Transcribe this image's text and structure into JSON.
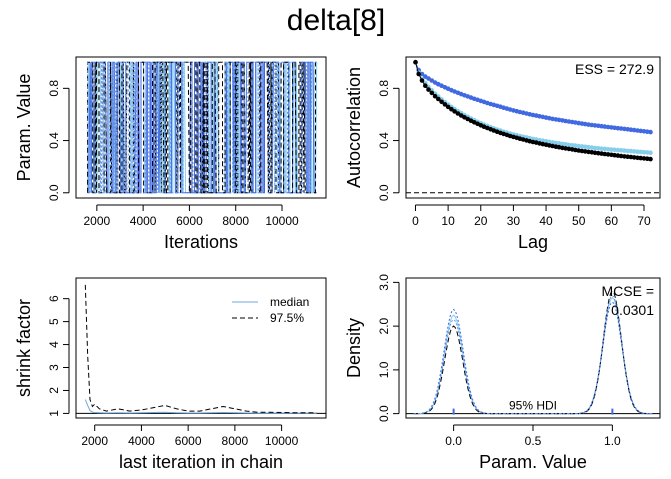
{
  "figure": {
    "title": "delta[8]"
  },
  "colors": {
    "chain_light": "#87CEEB",
    "chain_blue": "#4169E1",
    "chain_dark": "#000000",
    "chain_mid": "#6495ED",
    "median": "#6FA8DC",
    "axis": "#000000"
  },
  "chart_data": [
    {
      "id": "trace",
      "type": "line",
      "title": "",
      "xlabel": "Iterations",
      "ylabel": "Param. Value",
      "xlim": [
        1100,
        11900
      ],
      "ylim": [
        -0.04,
        1.04
      ],
      "x_ticks": [
        "2000",
        "4000",
        "6000",
        "8000",
        "10000"
      ],
      "y_ticks": [
        "0.0",
        "0.4",
        "0.8"
      ],
      "x_range": [
        1600,
        11500
      ],
      "value_levels": [
        0,
        1
      ],
      "series": [
        {
          "style": "solid",
          "color": "#87CEEB"
        },
        {
          "style": "solid",
          "color": "#4169E1"
        },
        {
          "style": "dashed",
          "color": "#000000"
        },
        {
          "style": "dotted",
          "color": "#6495ED"
        }
      ],
      "grid": false
    },
    {
      "id": "autocorrelation",
      "type": "scatter",
      "title": "",
      "xlabel": "Lag",
      "ylabel": "Autocorrelation",
      "xlim": [
        -2.9,
        74.9
      ],
      "ylim": [
        -0.04,
        1.04
      ],
      "x_ticks": [
        "0",
        "10",
        "20",
        "30",
        "40",
        "50",
        "60",
        "70"
      ],
      "y_ticks": [
        "0.0",
        "0.4",
        "0.8"
      ],
      "annotation": "ESS = 272.9",
      "reference_line": 0,
      "series": [
        {
          "color": "#4169E1",
          "values": [
            1.0,
            0.94,
            0.91,
            0.89,
            0.875,
            0.86,
            0.845,
            0.832,
            0.82,
            0.808,
            0.797,
            0.786,
            0.776,
            0.766,
            0.756,
            0.747,
            0.738,
            0.729,
            0.72,
            0.712,
            0.704,
            0.696,
            0.688,
            0.68,
            0.673,
            0.666,
            0.659,
            0.652,
            0.645,
            0.638,
            0.631,
            0.625,
            0.619,
            0.613,
            0.607,
            0.601,
            0.596,
            0.591,
            0.586,
            0.581,
            0.576,
            0.571,
            0.566,
            0.562,
            0.558,
            0.554,
            0.55,
            0.546,
            0.542,
            0.538,
            0.534,
            0.53,
            0.526,
            0.522,
            0.519,
            0.516,
            0.513,
            0.51,
            0.507,
            0.504,
            0.501,
            0.498,
            0.495,
            0.492,
            0.489,
            0.486,
            0.483,
            0.48,
            0.477,
            0.474,
            0.471,
            0.468,
            0.465
          ]
        },
        {
          "color": "#87CEEB",
          "values": [
            1.0,
            0.92,
            0.87,
            0.84,
            0.81,
            0.785,
            0.76,
            0.737,
            0.715,
            0.695,
            0.676,
            0.658,
            0.641,
            0.625,
            0.61,
            0.596,
            0.582,
            0.569,
            0.556,
            0.544,
            0.533,
            0.522,
            0.512,
            0.502,
            0.493,
            0.484,
            0.476,
            0.468,
            0.461,
            0.454,
            0.447,
            0.441,
            0.435,
            0.429,
            0.424,
            0.418,
            0.413,
            0.408,
            0.403,
            0.399,
            0.394,
            0.39,
            0.386,
            0.382,
            0.378,
            0.374,
            0.371,
            0.367,
            0.364,
            0.361,
            0.358,
            0.355,
            0.352,
            0.349,
            0.346,
            0.343,
            0.341,
            0.338,
            0.336,
            0.333,
            0.331,
            0.329,
            0.327,
            0.325,
            0.323,
            0.321,
            0.319,
            0.317,
            0.315,
            0.313,
            0.311,
            0.309,
            0.307
          ]
        },
        {
          "color": "#000000",
          "values": [
            1.0,
            0.91,
            0.86,
            0.82,
            0.79,
            0.765,
            0.74,
            0.718,
            0.697,
            0.677,
            0.658,
            0.64,
            0.623,
            0.607,
            0.592,
            0.578,
            0.565,
            0.552,
            0.54,
            0.528,
            0.517,
            0.506,
            0.496,
            0.486,
            0.477,
            0.468,
            0.459,
            0.451,
            0.443,
            0.435,
            0.428,
            0.421,
            0.414,
            0.408,
            0.401,
            0.395,
            0.389,
            0.384,
            0.378,
            0.373,
            0.368,
            0.363,
            0.358,
            0.353,
            0.349,
            0.344,
            0.34,
            0.336,
            0.332,
            0.328,
            0.324,
            0.32,
            0.317,
            0.313,
            0.31,
            0.306,
            0.303,
            0.3,
            0.297,
            0.294,
            0.291,
            0.288,
            0.285,
            0.282,
            0.279,
            0.276,
            0.274,
            0.271,
            0.268,
            0.266,
            0.263,
            0.261,
            0.258
          ]
        }
      ],
      "grid": false
    },
    {
      "id": "shrink",
      "type": "line",
      "title": "",
      "xlabel": "last iteration in chain",
      "ylabel": "shrink factor",
      "xlim": [
        1200,
        11900
      ],
      "ylim": [
        0.8,
        6.9
      ],
      "x_ticks": [
        "2000",
        "4000",
        "6000",
        "8000",
        "10000"
      ],
      "y_ticks": [
        "1",
        "2",
        "3",
        "4",
        "5",
        "6"
      ],
      "reference_line": 1,
      "legend": {
        "position": "top-right",
        "entries": [
          "median",
          "97.5%"
        ]
      },
      "series": [
        {
          "name": "median",
          "style": "solid",
          "color": "#6FA8DC",
          "x": [
            1600,
            1700,
            1800,
            1900,
            2000,
            2200,
            2500,
            3000,
            3500,
            4000,
            4500,
            5000,
            5500,
            6000,
            6500,
            7000,
            7500,
            8000,
            8500,
            9000,
            9500,
            10000,
            10500,
            11000,
            11500
          ],
          "values": [
            1.6,
            1.35,
            1.12,
            1.06,
            1.04,
            1.03,
            1.02,
            1.03,
            1.02,
            1.03,
            1.04,
            1.05,
            1.03,
            1.02,
            1.02,
            1.03,
            1.04,
            1.03,
            1.02,
            1.01,
            1.01,
            1.01,
            1.01,
            1.01,
            1.01
          ]
        },
        {
          "name": "97.5%",
          "style": "dashed",
          "color": "#000000",
          "x": [
            1600,
            1700,
            1800,
            1900,
            2000,
            2200,
            2500,
            3000,
            3500,
            4000,
            4500,
            5000,
            5500,
            6000,
            6500,
            7000,
            7500,
            8000,
            8500,
            9000,
            9500,
            10000,
            10500,
            11000,
            11500
          ],
          "values": [
            6.6,
            3.5,
            1.6,
            1.3,
            1.4,
            1.2,
            1.1,
            1.2,
            1.1,
            1.15,
            1.25,
            1.35,
            1.2,
            1.1,
            1.1,
            1.2,
            1.3,
            1.2,
            1.1,
            1.05,
            1.05,
            1.04,
            1.03,
            1.03,
            1.03
          ]
        }
      ],
      "grid": false
    },
    {
      "id": "density",
      "type": "line",
      "title": "",
      "xlabel": "Param. Value",
      "ylabel": "Density",
      "xlim": [
        -0.3,
        1.3
      ],
      "ylim": [
        -0.1,
        3.1
      ],
      "x_ticks": [
        "0.0",
        "0.5",
        "1.0"
      ],
      "y_ticks": [
        "0.0",
        "1.0",
        "2.0",
        "3.0"
      ],
      "annotation_lines": [
        "MCSE =",
        "0.0301"
      ],
      "hdi_label": "95% HDI",
      "hdi": [
        0,
        1
      ],
      "reference_line": 0,
      "series": [
        {
          "style": "solid",
          "color": "#87CEEB",
          "peaks": [
            {
              "mu": 0.0,
              "sd": 0.058,
              "h": 2.25
            },
            {
              "mu": 1.0,
              "sd": 0.058,
              "h": 2.65
            }
          ]
        },
        {
          "style": "dotted",
          "color": "#4169E1",
          "peaks": [
            {
              "mu": 0.0,
              "sd": 0.06,
              "h": 2.38
            },
            {
              "mu": 1.0,
              "sd": 0.06,
              "h": 2.55
            }
          ]
        },
        {
          "style": "dashed",
          "color": "#000000",
          "peaks": [
            {
              "mu": 0.0,
              "sd": 0.057,
              "h": 2.0
            },
            {
              "mu": 1.0,
              "sd": 0.057,
              "h": 2.8
            }
          ]
        },
        {
          "style": "dotted",
          "color": "#6495ED",
          "peaks": [
            {
              "mu": 0.0,
              "sd": 0.059,
              "h": 2.15
            },
            {
              "mu": 1.0,
              "sd": 0.059,
              "h": 2.7
            }
          ]
        }
      ],
      "grid": false
    }
  ]
}
